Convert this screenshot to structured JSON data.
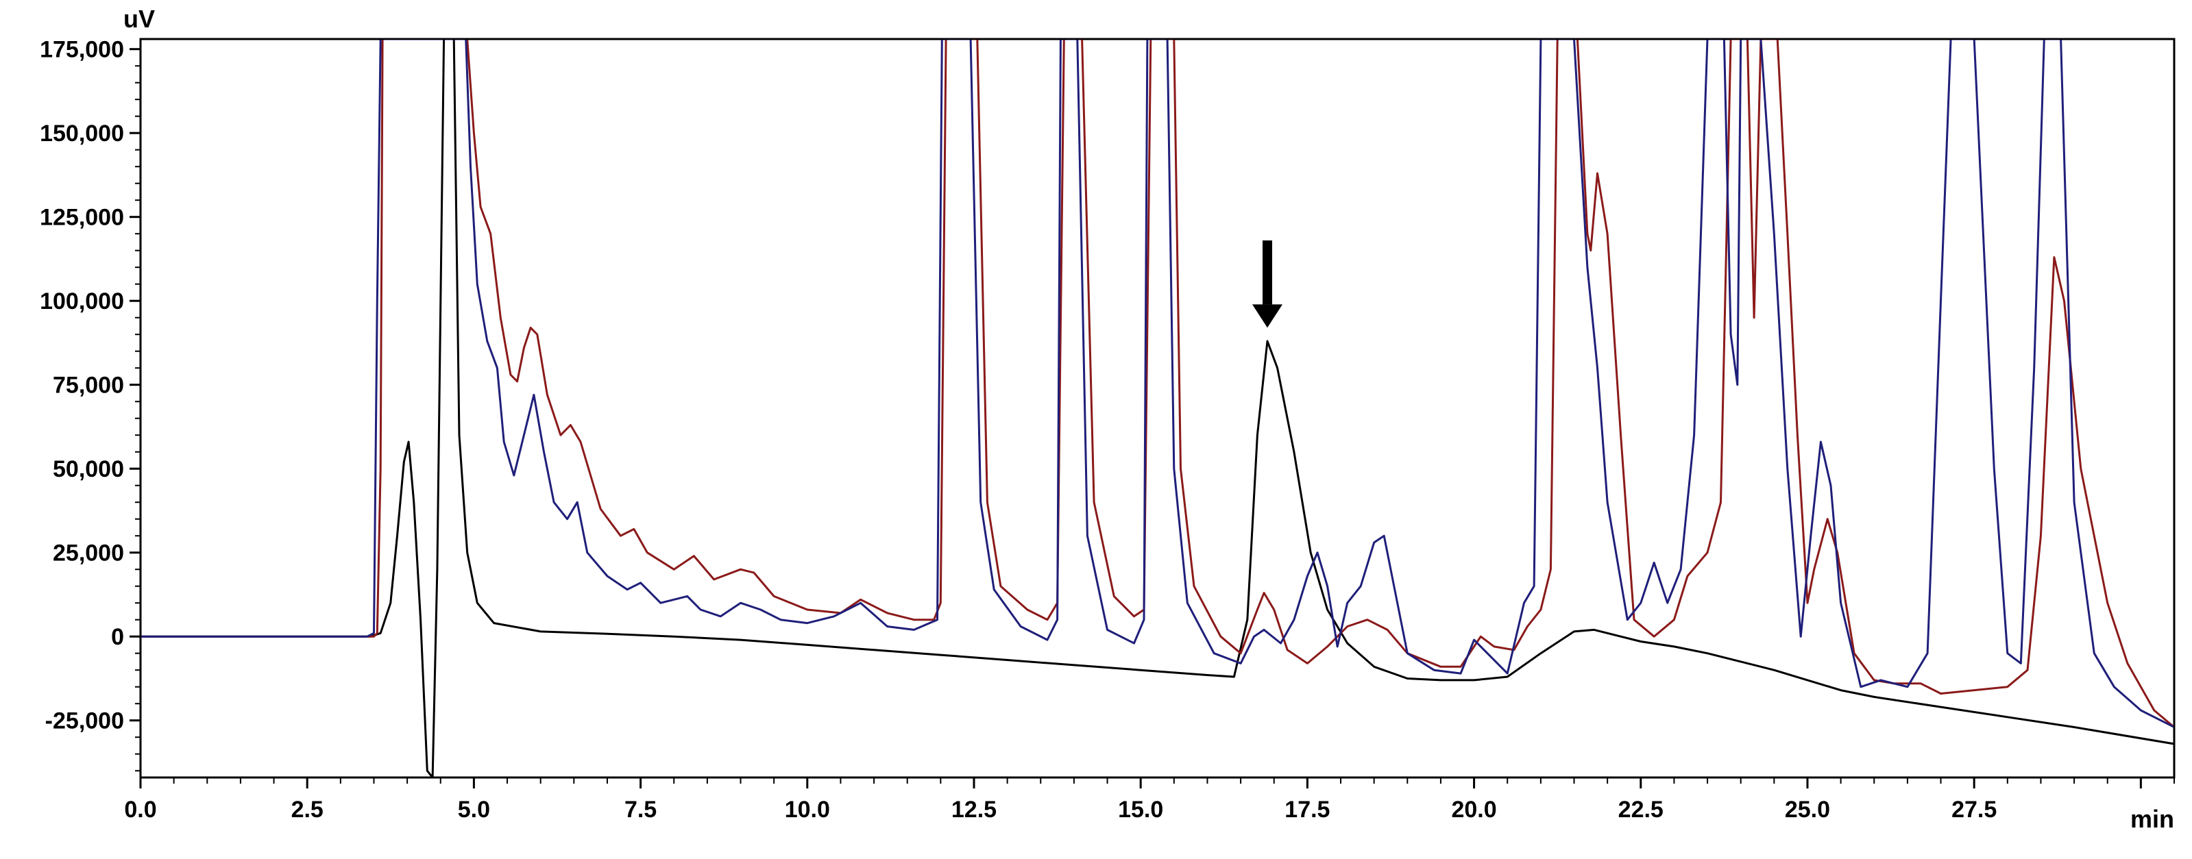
{
  "chart_data": {
    "type": "line",
    "title": "",
    "xlabel": "min",
    "ylabel": "uV",
    "xlim": [
      0,
      30.5
    ],
    "ylim": [
      -42000,
      178000
    ],
    "x_tick_labels": [
      "0.0",
      "2.5",
      "5.0",
      "7.5",
      "10.0",
      "12.5",
      "15.0",
      "17.5",
      "20.0",
      "22.5",
      "25.0",
      "27.5"
    ],
    "x_tick_values": [
      0,
      2.5,
      5,
      7.5,
      10,
      12.5,
      15,
      17.5,
      20,
      22.5,
      25,
      27.5
    ],
    "y_tick_labels": [
      "175,000",
      "150,000",
      "125,000",
      "100,000",
      "75,000",
      "50,000",
      "25,000",
      "0",
      "-25,000"
    ],
    "y_tick_values": [
      175000,
      150000,
      125000,
      100000,
      75000,
      50000,
      25000,
      0,
      -25000
    ],
    "grid": false,
    "legend": "none",
    "annotations": [
      {
        "type": "arrow",
        "x": 16.9,
        "y_tip": 92000,
        "y_tail": 118000,
        "direction": "down",
        "color": "#000000"
      }
    ],
    "series": [
      {
        "color": "#000000",
        "points": [
          [
            0,
            0
          ],
          [
            3.45,
            0
          ],
          [
            3.6,
            1000
          ],
          [
            3.75,
            10000
          ],
          [
            3.85,
            30000
          ],
          [
            3.95,
            52000
          ],
          [
            4.02,
            58000
          ],
          [
            4.1,
            40000
          ],
          [
            4.2,
            5000
          ],
          [
            4.3,
            -40000
          ],
          [
            4.38,
            -42000
          ],
          [
            4.45,
            20000
          ],
          [
            4.55,
            178000
          ],
          [
            4.7,
            178000
          ],
          [
            4.78,
            60000
          ],
          [
            4.9,
            25000
          ],
          [
            5.05,
            10000
          ],
          [
            5.3,
            4000
          ],
          [
            6,
            1500
          ],
          [
            7,
            800
          ],
          [
            8,
            0
          ],
          [
            9,
            -1000
          ],
          [
            10,
            -2500
          ],
          [
            11,
            -4000
          ],
          [
            12,
            -5500
          ],
          [
            13,
            -7000
          ],
          [
            14,
            -8500
          ],
          [
            15,
            -10000
          ],
          [
            16,
            -11500
          ],
          [
            16.4,
            -12000
          ],
          [
            16.6,
            5000
          ],
          [
            16.75,
            60000
          ],
          [
            16.9,
            88000
          ],
          [
            17.05,
            80000
          ],
          [
            17.3,
            55000
          ],
          [
            17.55,
            25000
          ],
          [
            17.8,
            8000
          ],
          [
            18.1,
            -2000
          ],
          [
            18.5,
            -9000
          ],
          [
            19,
            -12500
          ],
          [
            19.5,
            -13000
          ],
          [
            20,
            -13000
          ],
          [
            20.5,
            -12000
          ],
          [
            21,
            -5000
          ],
          [
            21.5,
            1500
          ],
          [
            21.8,
            2000
          ],
          [
            22.2,
            0
          ],
          [
            22.5,
            -1500
          ],
          [
            23,
            -3000
          ],
          [
            23.5,
            -5000
          ],
          [
            24,
            -7500
          ],
          [
            24.5,
            -10000
          ],
          [
            25,
            -13000
          ],
          [
            25.5,
            -16000
          ],
          [
            26,
            -18000
          ],
          [
            27,
            -21000
          ],
          [
            28,
            -24000
          ],
          [
            29,
            -27000
          ],
          [
            30.5,
            -32000
          ]
        ]
      },
      {
        "color": "#8b1a1a",
        "points": [
          [
            0,
            0
          ],
          [
            3.5,
            0
          ],
          [
            3.55,
            1000
          ],
          [
            3.6,
            50000
          ],
          [
            3.63,
            178000
          ],
          [
            4.9,
            178000
          ],
          [
            5.0,
            150000
          ],
          [
            5.1,
            128000
          ],
          [
            5.25,
            120000
          ],
          [
            5.4,
            95000
          ],
          [
            5.55,
            78000
          ],
          [
            5.65,
            76000
          ],
          [
            5.75,
            86000
          ],
          [
            5.85,
            92000
          ],
          [
            5.95,
            90000
          ],
          [
            6.1,
            72000
          ],
          [
            6.3,
            60000
          ],
          [
            6.45,
            63000
          ],
          [
            6.6,
            58000
          ],
          [
            6.9,
            38000
          ],
          [
            7.2,
            30000
          ],
          [
            7.4,
            32000
          ],
          [
            7.6,
            25000
          ],
          [
            8.0,
            20000
          ],
          [
            8.3,
            24000
          ],
          [
            8.6,
            17000
          ],
          [
            9.0,
            20000
          ],
          [
            9.2,
            19000
          ],
          [
            9.5,
            12000
          ],
          [
            10.0,
            8000
          ],
          [
            10.5,
            7000
          ],
          [
            10.8,
            11000
          ],
          [
            11.2,
            7000
          ],
          [
            11.6,
            5000
          ],
          [
            11.9,
            5000
          ],
          [
            12.0,
            10000
          ],
          [
            12.08,
            178000
          ],
          [
            12.55,
            178000
          ],
          [
            12.7,
            40000
          ],
          [
            12.9,
            15000
          ],
          [
            13.3,
            8000
          ],
          [
            13.6,
            5000
          ],
          [
            13.75,
            10000
          ],
          [
            13.85,
            178000
          ],
          [
            14.12,
            178000
          ],
          [
            14.3,
            40000
          ],
          [
            14.6,
            12000
          ],
          [
            14.9,
            6000
          ],
          [
            15.05,
            8000
          ],
          [
            15.15,
            178000
          ],
          [
            15.5,
            178000
          ],
          [
            15.6,
            50000
          ],
          [
            15.8,
            15000
          ],
          [
            16.2,
            0
          ],
          [
            16.5,
            -5000
          ],
          [
            16.75,
            8000
          ],
          [
            16.85,
            13000
          ],
          [
            17.0,
            8000
          ],
          [
            17.2,
            -4000
          ],
          [
            17.5,
            -8000
          ],
          [
            17.8,
            -3000
          ],
          [
            18.1,
            3000
          ],
          [
            18.4,
            5000
          ],
          [
            18.7,
            2000
          ],
          [
            19.0,
            -5000
          ],
          [
            19.5,
            -9000
          ],
          [
            19.8,
            -9000
          ],
          [
            20.1,
            0
          ],
          [
            20.3,
            -3000
          ],
          [
            20.6,
            -4000
          ],
          [
            20.8,
            3000
          ],
          [
            21.0,
            8000
          ],
          [
            21.15,
            20000
          ],
          [
            21.25,
            178000
          ],
          [
            21.55,
            178000
          ],
          [
            21.7,
            120000
          ],
          [
            21.75,
            115000
          ],
          [
            21.85,
            138000
          ],
          [
            22.0,
            120000
          ],
          [
            22.2,
            60000
          ],
          [
            22.4,
            5000
          ],
          [
            22.7,
            0
          ],
          [
            23.0,
            5000
          ],
          [
            23.2,
            18000
          ],
          [
            23.5,
            25000
          ],
          [
            23.7,
            40000
          ],
          [
            23.85,
            178000
          ],
          [
            24.0,
            178000
          ],
          [
            24.1,
            178000
          ],
          [
            24.2,
            95000
          ],
          [
            24.3,
            178000
          ],
          [
            24.55,
            178000
          ],
          [
            24.7,
            120000
          ],
          [
            24.85,
            60000
          ],
          [
            25.0,
            10000
          ],
          [
            25.1,
            20000
          ],
          [
            25.3,
            35000
          ],
          [
            25.45,
            25000
          ],
          [
            25.7,
            -5000
          ],
          [
            26.0,
            -13000
          ],
          [
            26.3,
            -14000
          ],
          [
            26.7,
            -14000
          ],
          [
            27.0,
            -17000
          ],
          [
            27.5,
            -16000
          ],
          [
            28.0,
            -15000
          ],
          [
            28.3,
            -10000
          ],
          [
            28.5,
            30000
          ],
          [
            28.7,
            113000
          ],
          [
            28.85,
            100000
          ],
          [
            29.1,
            50000
          ],
          [
            29.5,
            10000
          ],
          [
            29.8,
            -8000
          ],
          [
            30.2,
            -22000
          ],
          [
            30.5,
            -27000
          ]
        ]
      },
      {
        "color": "#1f1f7a",
        "points": [
          [
            0,
            0
          ],
          [
            3.4,
            0
          ],
          [
            3.5,
            1000
          ],
          [
            3.55,
            100000
          ],
          [
            3.6,
            178000
          ],
          [
            4.88,
            178000
          ],
          [
            4.95,
            140000
          ],
          [
            5.05,
            105000
          ],
          [
            5.2,
            88000
          ],
          [
            5.35,
            80000
          ],
          [
            5.45,
            58000
          ],
          [
            5.6,
            48000
          ],
          [
            5.75,
            60000
          ],
          [
            5.9,
            72000
          ],
          [
            6.05,
            55000
          ],
          [
            6.2,
            40000
          ],
          [
            6.4,
            35000
          ],
          [
            6.55,
            40000
          ],
          [
            6.7,
            25000
          ],
          [
            7.0,
            18000
          ],
          [
            7.3,
            14000
          ],
          [
            7.5,
            16000
          ],
          [
            7.8,
            10000
          ],
          [
            8.2,
            12000
          ],
          [
            8.4,
            8000
          ],
          [
            8.7,
            6000
          ],
          [
            9.0,
            10000
          ],
          [
            9.3,
            8000
          ],
          [
            9.6,
            5000
          ],
          [
            10.0,
            4000
          ],
          [
            10.4,
            6000
          ],
          [
            10.8,
            10000
          ],
          [
            11.2,
            3000
          ],
          [
            11.6,
            2000
          ],
          [
            11.95,
            5000
          ],
          [
            12.02,
            178000
          ],
          [
            12.45,
            178000
          ],
          [
            12.6,
            40000
          ],
          [
            12.8,
            14000
          ],
          [
            13.2,
            3000
          ],
          [
            13.6,
            -1000
          ],
          [
            13.75,
            5000
          ],
          [
            13.8,
            178000
          ],
          [
            14.05,
            178000
          ],
          [
            14.2,
            30000
          ],
          [
            14.5,
            2000
          ],
          [
            14.9,
            -2000
          ],
          [
            15.05,
            5000
          ],
          [
            15.1,
            178000
          ],
          [
            15.4,
            178000
          ],
          [
            15.5,
            50000
          ],
          [
            15.7,
            10000
          ],
          [
            16.1,
            -5000
          ],
          [
            16.5,
            -8000
          ],
          [
            16.7,
            0
          ],
          [
            16.85,
            2000
          ],
          [
            17.1,
            -2000
          ],
          [
            17.3,
            5000
          ],
          [
            17.5,
            18000
          ],
          [
            17.65,
            25000
          ],
          [
            17.8,
            15000
          ],
          [
            17.95,
            -3000
          ],
          [
            18.1,
            10000
          ],
          [
            18.3,
            15000
          ],
          [
            18.5,
            28000
          ],
          [
            18.65,
            30000
          ],
          [
            18.8,
            15000
          ],
          [
            19.0,
            -5000
          ],
          [
            19.4,
            -10000
          ],
          [
            19.8,
            -11000
          ],
          [
            20.0,
            -1000
          ],
          [
            20.2,
            -5000
          ],
          [
            20.5,
            -11000
          ],
          [
            20.75,
            10000
          ],
          [
            20.9,
            15000
          ],
          [
            21.0,
            178000
          ],
          [
            21.5,
            178000
          ],
          [
            21.7,
            110000
          ],
          [
            21.85,
            80000
          ],
          [
            22.0,
            40000
          ],
          [
            22.3,
            5000
          ],
          [
            22.5,
            10000
          ],
          [
            22.7,
            22000
          ],
          [
            22.9,
            10000
          ],
          [
            23.1,
            20000
          ],
          [
            23.3,
            60000
          ],
          [
            23.5,
            178000
          ],
          [
            23.75,
            178000
          ],
          [
            23.85,
            90000
          ],
          [
            23.95,
            75000
          ],
          [
            24.0,
            178000
          ],
          [
            24.3,
            178000
          ],
          [
            24.5,
            120000
          ],
          [
            24.7,
            50000
          ],
          [
            24.9,
            0
          ],
          [
            25.05,
            30000
          ],
          [
            25.2,
            58000
          ],
          [
            25.35,
            45000
          ],
          [
            25.5,
            10000
          ],
          [
            25.8,
            -15000
          ],
          [
            26.1,
            -13000
          ],
          [
            26.5,
            -15000
          ],
          [
            26.8,
            -5000
          ],
          [
            27.0,
            100000
          ],
          [
            27.15,
            178000
          ],
          [
            27.5,
            178000
          ],
          [
            27.8,
            50000
          ],
          [
            28.0,
            -5000
          ],
          [
            28.2,
            -8000
          ],
          [
            28.4,
            80000
          ],
          [
            28.55,
            178000
          ],
          [
            28.8,
            178000
          ],
          [
            29.0,
            40000
          ],
          [
            29.3,
            -5000
          ],
          [
            29.6,
            -15000
          ],
          [
            30.0,
            -22000
          ],
          [
            30.5,
            -27000
          ]
        ]
      }
    ]
  }
}
